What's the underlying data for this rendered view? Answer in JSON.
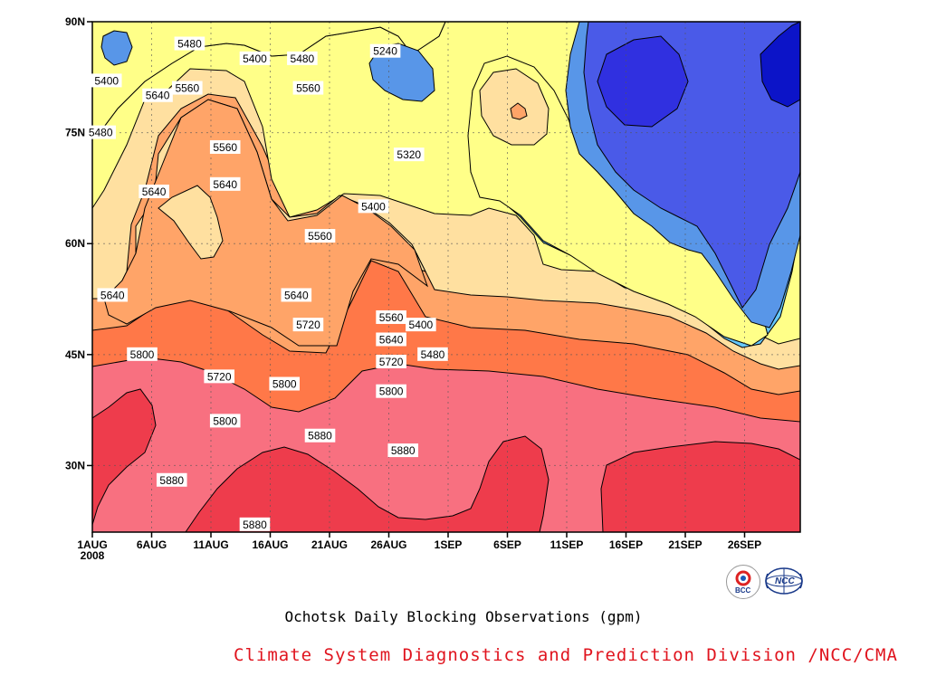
{
  "chart_data": {
    "type": "contour",
    "title": "Ochotsk Daily Blocking Observations (gpm)",
    "x_ticks": [
      "1AUG",
      "6AUG",
      "11AUG",
      "16AUG",
      "21AUG",
      "26AUG",
      "1SEP",
      "6SEP",
      "11SEP",
      "16SEP",
      "21SEP",
      "26SEP"
    ],
    "x_year": "2008",
    "y_ticks": [
      "30N",
      "45N",
      "60N",
      "75N",
      "90N"
    ],
    "y_values": [
      30,
      45,
      60,
      75,
      90
    ],
    "ylim": [
      21,
      90
    ],
    "grid": "dotted",
    "levels": [
      5240,
      5320,
      5400,
      5480,
      5560,
      5640,
      5720,
      5800,
      5880
    ],
    "level_colors": {
      "5160": "#0c14c8",
      "5240": "#3030e0",
      "5320": "#4a5ae8",
      "5400": "#5896e8",
      "5480": "#66c8fa",
      "5560": "#ffff88",
      "5640": "#ffe0a0",
      "5720": "#ffa468",
      "5800": "#ff7848",
      "5880": "#f87080",
      "5960": "#ee3c4c"
    },
    "contour_labels": [
      {
        "value": "5480",
        "day": 7,
        "lat": 87
      },
      {
        "value": "5400",
        "day": 0,
        "lat": 82
      },
      {
        "value": "5560",
        "day": 6.8,
        "lat": 81
      },
      {
        "value": "5640",
        "day": 4.3,
        "lat": 80
      },
      {
        "value": "5480",
        "day": -0.5,
        "lat": 75
      },
      {
        "value": "5400",
        "day": 12.5,
        "lat": 85
      },
      {
        "value": "5480",
        "day": 16.5,
        "lat": 85
      },
      {
        "value": "5560",
        "day": 17,
        "lat": 81
      },
      {
        "value": "5240",
        "day": 23.5,
        "lat": 86
      },
      {
        "value": "5320",
        "day": 25.5,
        "lat": 72
      },
      {
        "value": "5560",
        "day": 10,
        "lat": 73
      },
      {
        "value": "5640",
        "day": 4,
        "lat": 67
      },
      {
        "value": "5640",
        "day": 10,
        "lat": 68
      },
      {
        "value": "5400",
        "day": 22.5,
        "lat": 65
      },
      {
        "value": "5560",
        "day": 18,
        "lat": 61
      },
      {
        "value": "5640",
        "day": 0.5,
        "lat": 53
      },
      {
        "value": "5640",
        "day": 16,
        "lat": 53
      },
      {
        "value": "5720",
        "day": 17,
        "lat": 49
      },
      {
        "value": "5560",
        "day": 24,
        "lat": 50
      },
      {
        "value": "5400",
        "day": 26.5,
        "lat": 49
      },
      {
        "value": "5640",
        "day": 24,
        "lat": 47
      },
      {
        "value": "5480",
        "day": 27.5,
        "lat": 45
      },
      {
        "value": "5720",
        "day": 24,
        "lat": 44
      },
      {
        "value": "5800",
        "day": 3,
        "lat": 45
      },
      {
        "value": "5720",
        "day": 9.5,
        "lat": 42
      },
      {
        "value": "5800",
        "day": 15,
        "lat": 41
      },
      {
        "value": "5800",
        "day": 24,
        "lat": 40
      },
      {
        "value": "5800",
        "day": 10,
        "lat": 36
      },
      {
        "value": "5880",
        "day": 18,
        "lat": 34
      },
      {
        "value": "5880",
        "day": 25,
        "lat": 32
      },
      {
        "value": "5880",
        "day": 5.5,
        "lat": 28
      },
      {
        "value": "5880",
        "day": 12.5,
        "lat": 22
      }
    ]
  },
  "credit": {
    "text": "Climate System Diagnostics and Prediction Division /NCC/CMA",
    "color": "#e0141e"
  },
  "logos": {
    "bcc": "BCC",
    "ncc": "NCC"
  }
}
